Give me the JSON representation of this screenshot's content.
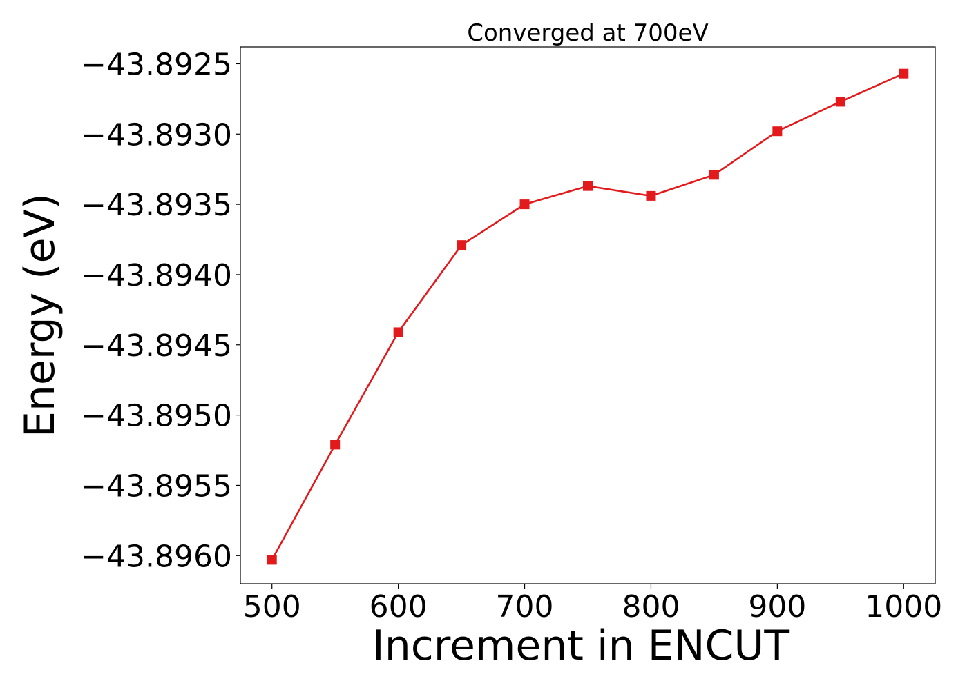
{
  "chart_data": {
    "type": "line",
    "title": "Converged at 700eV",
    "xlabel": "Increment in ENCUT",
    "ylabel": "Energy (eV)",
    "x": [
      500,
      550,
      600,
      650,
      700,
      750,
      800,
      850,
      900,
      950,
      1000
    ],
    "series": [
      {
        "values": [
          -43.89603,
          -43.89521,
          -43.89441,
          -43.89379,
          -43.8935,
          -43.89337,
          -43.89344,
          -43.89329,
          -43.89298,
          -43.89277,
          -43.89257
        ],
        "color": "#e31a1c",
        "marker": "square"
      }
    ],
    "xlim": [
      475,
      1025
    ],
    "ylim": [
      -43.8962,
      -43.89238
    ],
    "xticks": [
      500,
      600,
      700,
      800,
      900,
      1000
    ],
    "xtick_labels": [
      "500",
      "600",
      "700",
      "800",
      "900",
      "1000"
    ],
    "yticks": [
      -43.896,
      -43.8955,
      -43.895,
      -43.8945,
      -43.894,
      -43.8935,
      -43.893,
      -43.8925
    ],
    "ytick_labels": [
      "−43.8960",
      "−43.8955",
      "−43.8950",
      "−43.8945",
      "−43.8940",
      "−43.8935",
      "−43.8930",
      "−43.8925"
    ],
    "grid": false,
    "legend": "none"
  }
}
